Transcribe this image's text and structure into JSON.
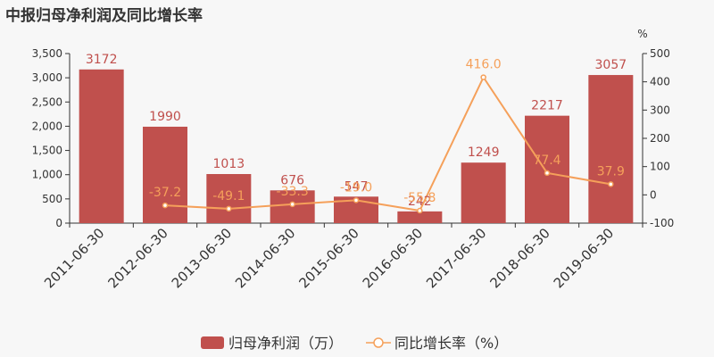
{
  "title": "中报归母净利润及同比增长率",
  "colors": {
    "bar": "#c0504d",
    "line": "#f5a05a",
    "axis": "#333333",
    "grid": "#e0e0e0"
  },
  "chart_data": {
    "type": "bar",
    "title": "中报归母净利润及同比增长率",
    "categories": [
      "2011-06-30",
      "2012-06-30",
      "2013-06-30",
      "2014-06-30",
      "2015-06-30",
      "2016-06-30",
      "2017-06-30",
      "2018-06-30",
      "2019-06-30"
    ],
    "series": [
      {
        "name": "归母净利润（万）",
        "type": "bar",
        "axis": "left",
        "values": [
          3172,
          1990,
          1013,
          676,
          547,
          242,
          1249,
          2217,
          3057
        ],
        "labels": [
          "3172",
          "1990",
          "1013",
          "676",
          "547",
          "242",
          "1249",
          "2217",
          "3057"
        ]
      },
      {
        "name": "同比增长率（%）",
        "type": "line",
        "axis": "right",
        "values": [
          null,
          -37.2,
          -49.1,
          -33.3,
          -19.0,
          -55.8,
          416.0,
          77.4,
          37.9
        ],
        "labels": [
          "",
          "-37.2",
          "-49.1",
          "-33.3",
          "-19.0",
          "-55.8",
          "416.0",
          "77.4",
          "37.9"
        ]
      }
    ],
    "y_left": {
      "min": 0,
      "max": 3500,
      "ticks": [
        "0",
        "500",
        "1,000",
        "1,500",
        "2,000",
        "2,500",
        "3,000",
        "3,500"
      ]
    },
    "y_right": {
      "min": -100,
      "max": 500,
      "unit": "%",
      "ticks": [
        "-100",
        "0",
        "100",
        "200",
        "300",
        "400",
        "500"
      ]
    },
    "legend_position": "bottom-center",
    "grid": false
  }
}
